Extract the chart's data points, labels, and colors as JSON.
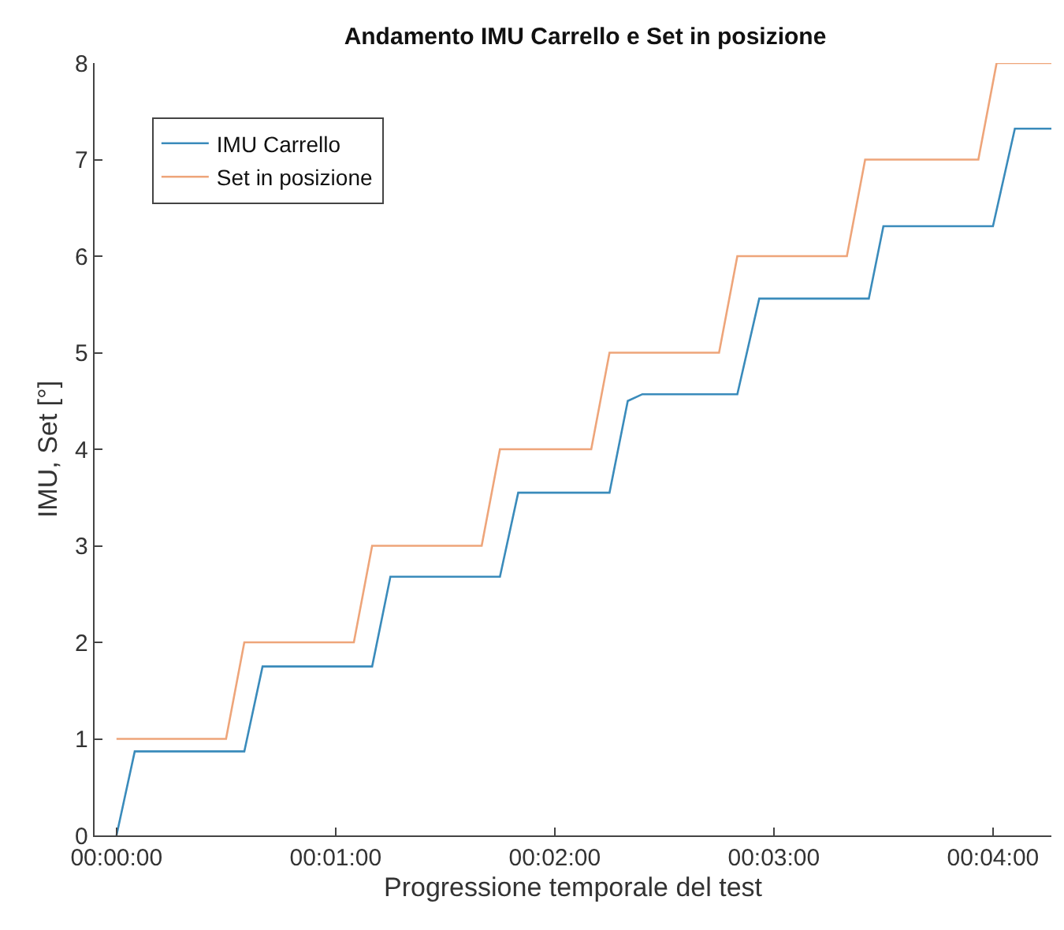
{
  "chart_data": {
    "type": "line",
    "title": "Andamento IMU Carrello e Set in posizione",
    "xlabel": "Progressione temporale del test",
    "ylabel": "IMU, Set [°]",
    "series": [
      {
        "name": "IMU Carrello",
        "color": "#3a8bbb",
        "x": [
          0,
          5,
          35,
          40,
          70,
          75,
          105,
          110,
          135,
          140,
          144,
          170,
          176,
          206,
          210,
          240,
          246,
          256
        ],
        "values": [
          0,
          0.87,
          0.87,
          1.75,
          1.75,
          2.68,
          2.68,
          3.55,
          3.55,
          4.5,
          4.57,
          4.57,
          5.56,
          5.56,
          6.31,
          6.31,
          7.32,
          7.32
        ]
      },
      {
        "name": "Set in posizione",
        "color": "#eea57a",
        "x": [
          0,
          30,
          35,
          65,
          70,
          100,
          105,
          130,
          135,
          165,
          170,
          200,
          205,
          236,
          241,
          256
        ],
        "values": [
          1,
          1,
          2,
          2,
          3,
          3,
          4,
          4,
          5,
          5,
          6,
          6,
          7,
          7,
          8,
          8
        ]
      }
    ],
    "xlim": [
      -6,
      256
    ],
    "xticks": [
      {
        "value": 0,
        "label": "00:00:00"
      },
      {
        "value": 60,
        "label": "00:01:00"
      },
      {
        "value": 120,
        "label": "00:02:00"
      },
      {
        "value": 180,
        "label": "00:03:00"
      },
      {
        "value": 240,
        "label": "00:04:00"
      }
    ],
    "ylim": [
      0,
      8
    ],
    "yticks": [
      0,
      1,
      2,
      3,
      4,
      5,
      6,
      7,
      8
    ],
    "legend": "top left",
    "marker": "none",
    "line_style": "solid"
  }
}
